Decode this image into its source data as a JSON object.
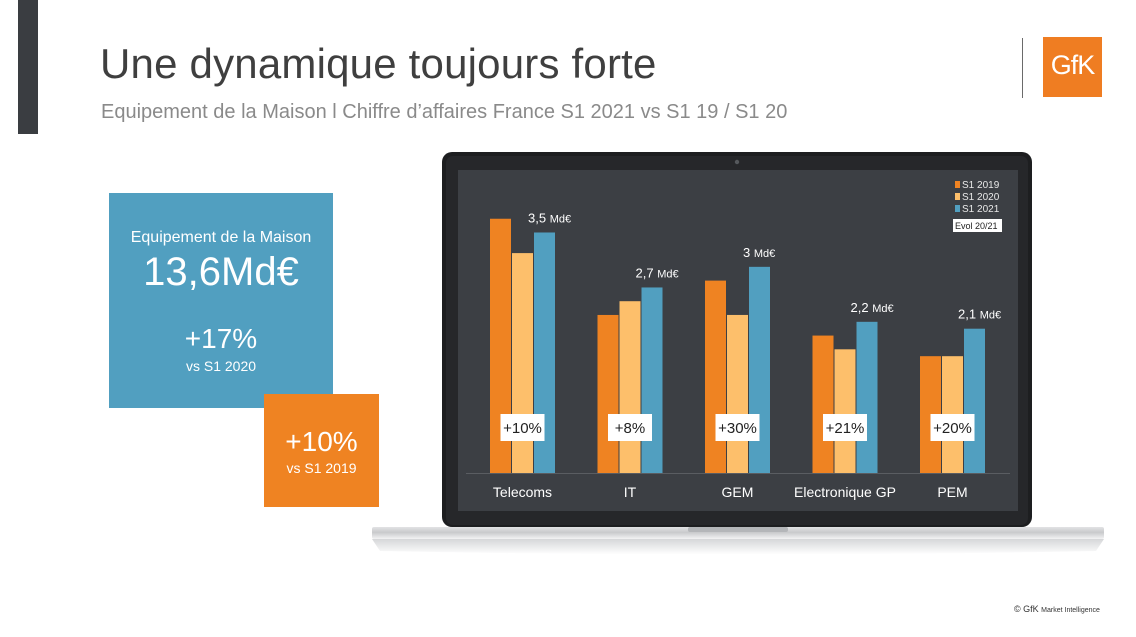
{
  "title": "Une dynamique toujours forte",
  "subtitle": "Equipement de la Maison l Chiffre d’affaires France S1 2021 vs S1 19 / S1 20",
  "logo": {
    "text": "GfK",
    "color": "#ef7d22"
  },
  "kpi_main": {
    "label": "Equipement de la Maison",
    "value": "13,6Md€",
    "growth": "+17%",
    "growth_ref": "vs S1 2020",
    "color": "#519fc0"
  },
  "kpi_secondary": {
    "growth": "+10%",
    "growth_ref": "vs S1 2019",
    "color": "#ef8322"
  },
  "footer": {
    "brand": "© GfK",
    "sub": "Market Intelligence"
  },
  "chart_data": {
    "type": "bar",
    "categories": [
      "Telecoms",
      "IT",
      "GEM",
      "Electronique GP",
      "PEM"
    ],
    "series": [
      {
        "name": "S1 2019",
        "color": "#ef8322",
        "values": [
          3.7,
          2.3,
          2.8,
          2.0,
          1.7
        ]
      },
      {
        "name": "S1 2020",
        "color": "#fdbf6b",
        "values": [
          3.2,
          2.5,
          2.3,
          1.8,
          1.7
        ]
      },
      {
        "name": "S1 2021",
        "color": "#519fc0",
        "values": [
          3.5,
          2.7,
          3.0,
          2.2,
          2.1
        ]
      }
    ],
    "value_labels": [
      "3,5",
      "2,7",
      "3",
      "2,2",
      "2,1"
    ],
    "unit_label": "Md€",
    "evol_labels": [
      "+10%",
      "+8%",
      "+30%",
      "+21%",
      "+20%"
    ],
    "evol_legend": "Evol 20/21",
    "legend_position": "top-right",
    "ylim": [
      0,
      3.9
    ],
    "grid": false
  }
}
